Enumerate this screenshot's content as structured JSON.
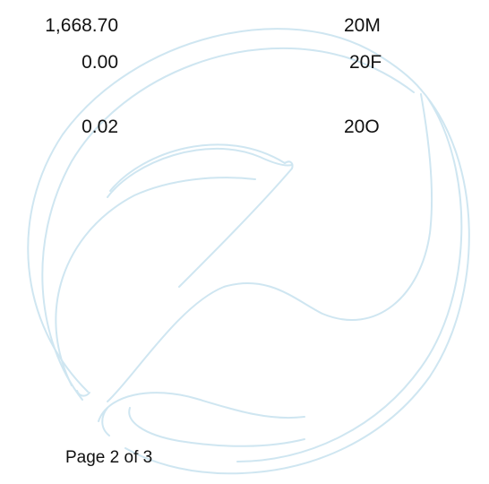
{
  "rows": [
    {
      "amount": "1,668.70",
      "code": "20M"
    },
    {
      "amount": "0.00",
      "code": "20F"
    },
    {
      "amount": "0.02",
      "code": "20O"
    }
  ],
  "footer": {
    "page_label": "Page 2 of 3"
  },
  "colors": {
    "text": "#111111",
    "watermark": "#cfe6f1",
    "background": "#ffffff"
  },
  "watermark": {
    "icon": "circular-swirl-watermark"
  }
}
